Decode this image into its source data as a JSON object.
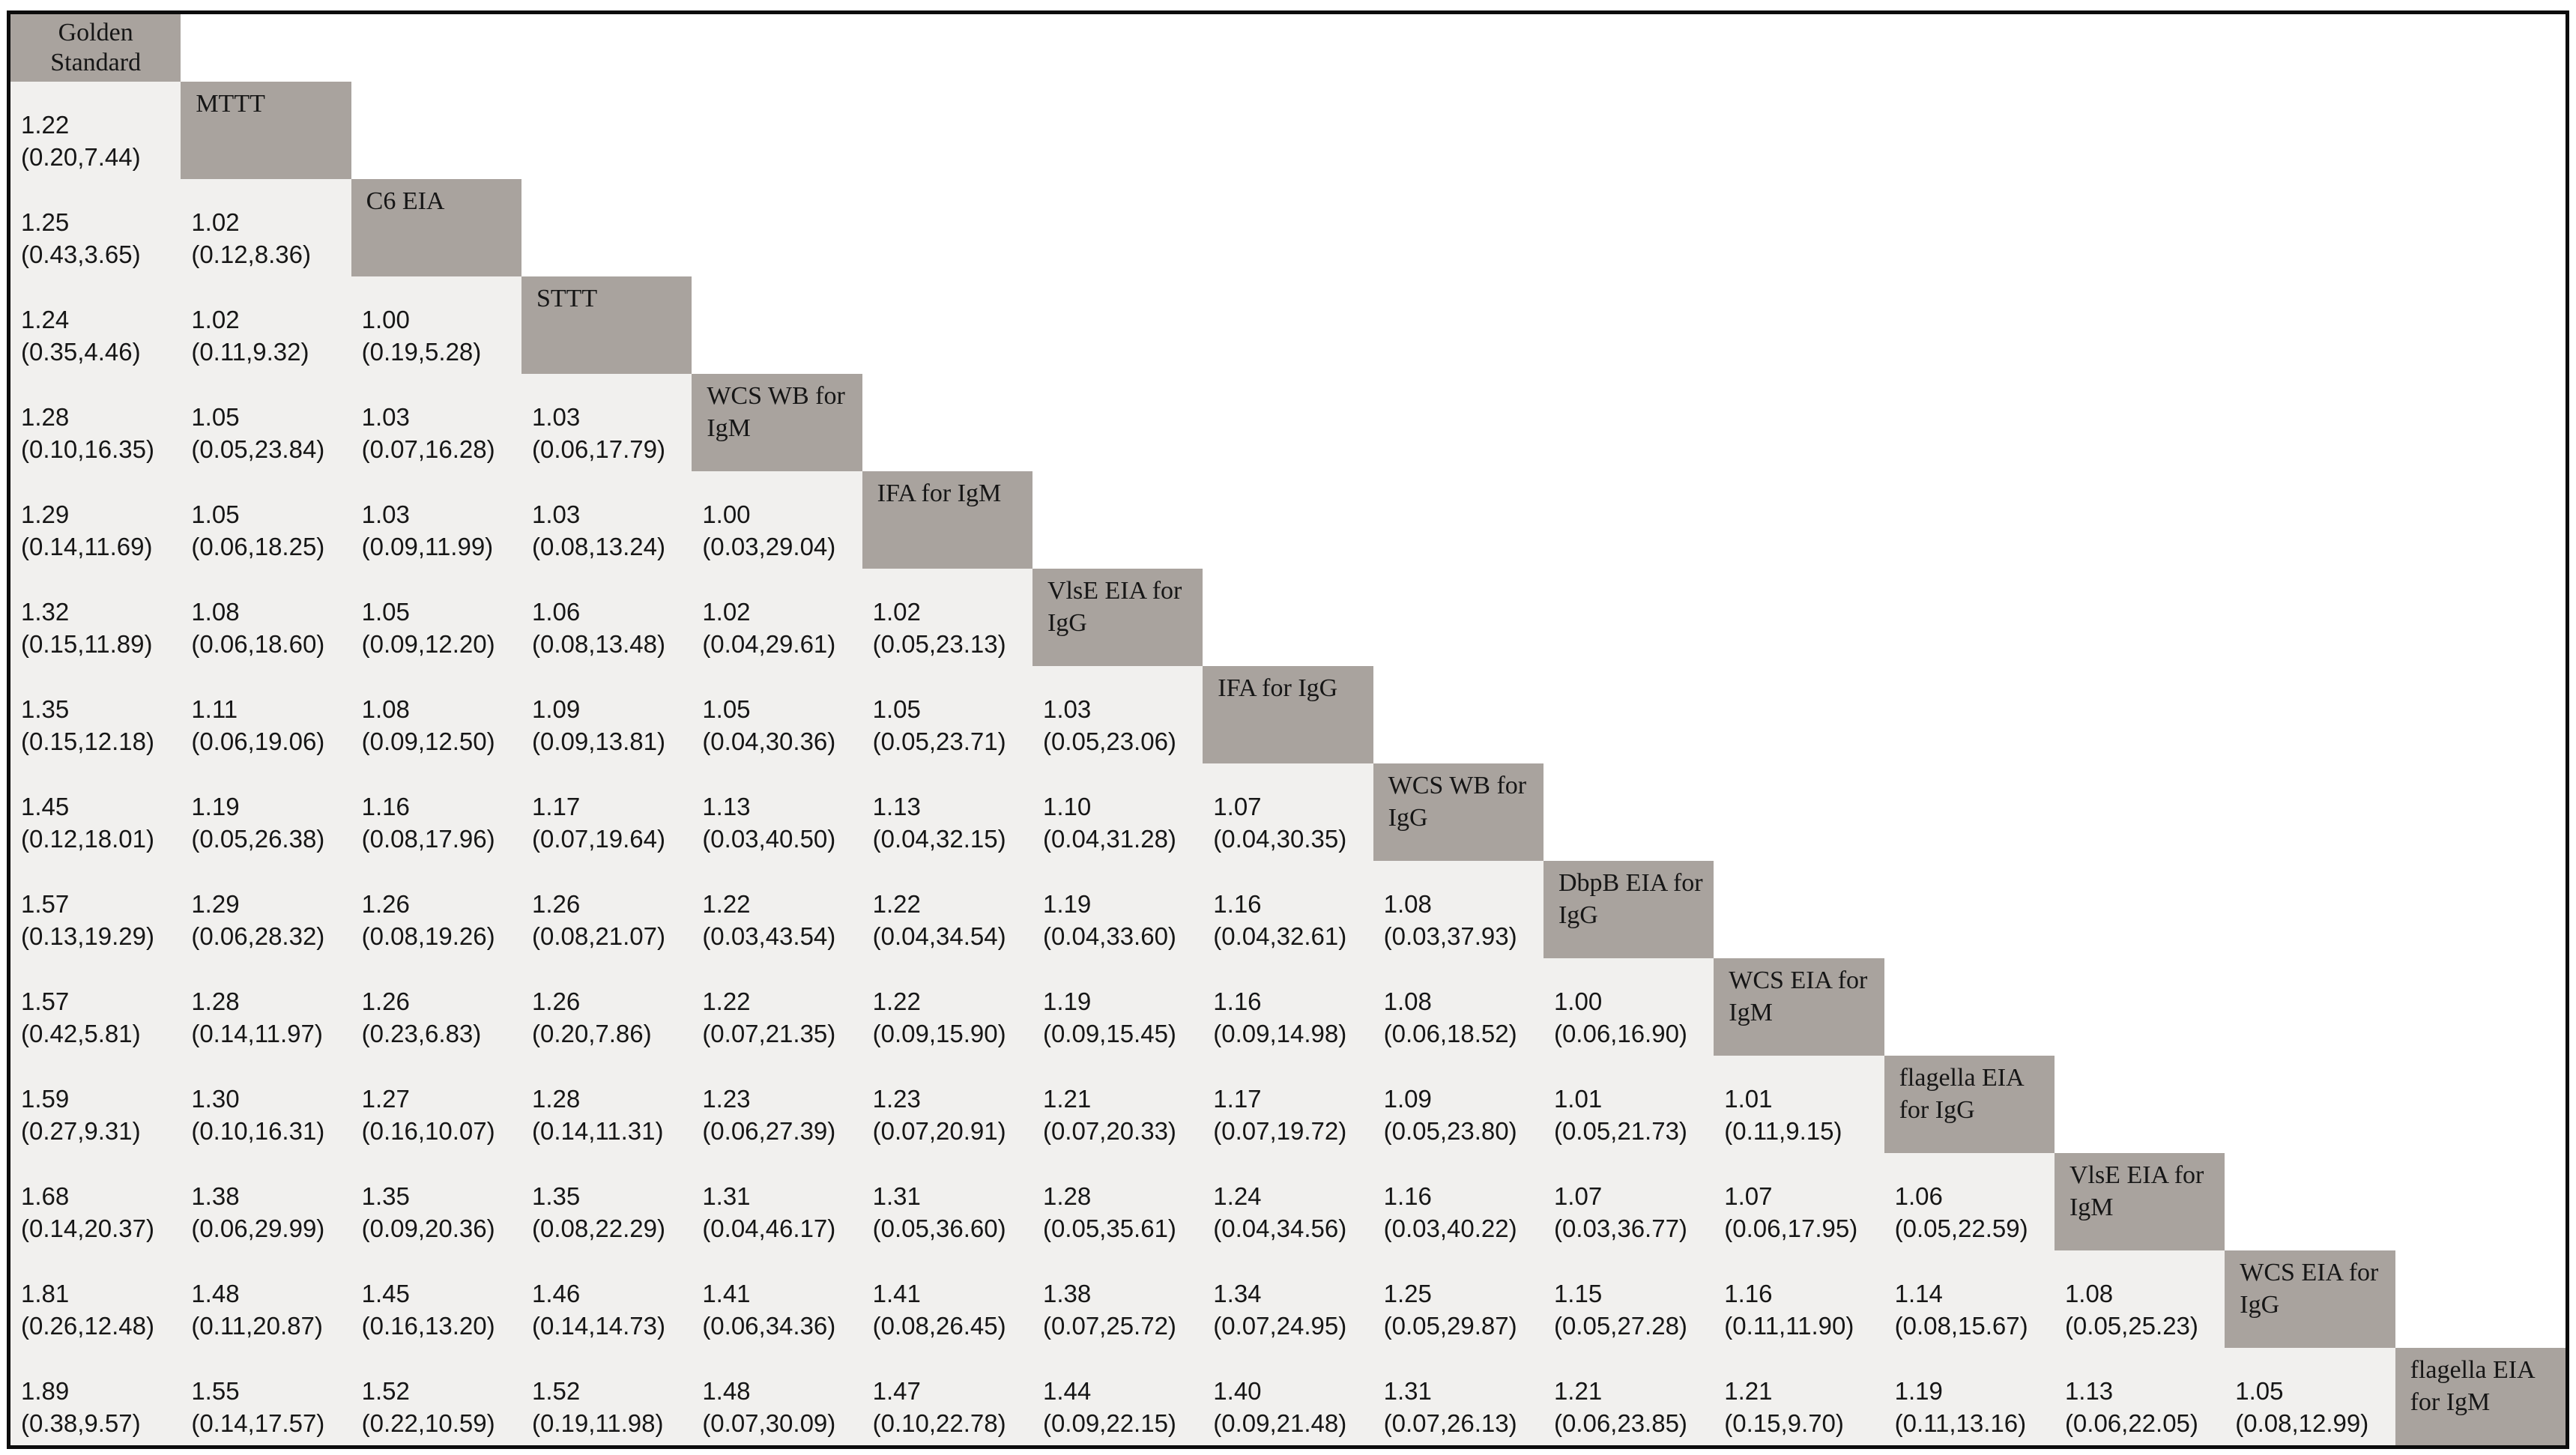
{
  "figure": {
    "kind": "network-meta-analysis league table of diagnostic tests",
    "border_color": "#0c0c0c",
    "background": "#ffffff"
  },
  "colors": {
    "diagonal_cell_bg": "#a9a39e",
    "value_cell_bg": "#f1f0ee",
    "empty_cell_bg": "#ffffff",
    "text": "#161616"
  },
  "chart_data": {
    "type": "table",
    "layout": "lower-triangular matrix; diagonal cells hold test names; each lower cell shows relative estimate with (lower,upper) interval comparing row test vs column test",
    "diagonal_labels": [
      "Golden Standard",
      "MTTT",
      "C6 EIA",
      "STTT",
      "WCS WB for IgM",
      "IFA for IgM",
      "VlsE EIA for IgG",
      "IFA for IgG",
      "WCS WB for IgG",
      "DbpB EIA for IgG",
      "WCS EIA for IgM",
      "flagella EIA for IgG",
      "VlsE EIA for IgM",
      "WCS EIA for IgG",
      "flagella EIA for IgM"
    ],
    "rows": [
      {
        "diagonal": "Golden Standard",
        "cells": []
      },
      {
        "diagonal": "MTTT",
        "cells": [
          {
            "est": "1.22",
            "ci": "(0.20,7.44)"
          }
        ]
      },
      {
        "diagonal": "C6 EIA",
        "cells": [
          {
            "est": "1.25",
            "ci": "(0.43,3.65)"
          },
          {
            "est": "1.02",
            "ci": "(0.12,8.36)"
          }
        ]
      },
      {
        "diagonal": "STTT",
        "cells": [
          {
            "est": "1.24",
            "ci": "(0.35,4.46)"
          },
          {
            "est": "1.02",
            "ci": "(0.11,9.32)"
          },
          {
            "est": "1.00",
            "ci": "(0.19,5.28)"
          }
        ]
      },
      {
        "diagonal": "WCS WB for IgM",
        "cells": [
          {
            "est": "1.28",
            "ci": "(0.10,16.35)"
          },
          {
            "est": "1.05",
            "ci": "(0.05,23.84)"
          },
          {
            "est": "1.03",
            "ci": "(0.07,16.28)"
          },
          {
            "est": "1.03",
            "ci": "(0.06,17.79)"
          }
        ]
      },
      {
        "diagonal": "IFA for IgM",
        "cells": [
          {
            "est": "1.29",
            "ci": "(0.14,11.69)"
          },
          {
            "est": "1.05",
            "ci": "(0.06,18.25)"
          },
          {
            "est": "1.03",
            "ci": "(0.09,11.99)"
          },
          {
            "est": "1.03",
            "ci": "(0.08,13.24)"
          },
          {
            "est": "1.00",
            "ci": "(0.03,29.04)"
          }
        ]
      },
      {
        "diagonal": "VlsE EIA for IgG",
        "cells": [
          {
            "est": "1.32",
            "ci": "(0.15,11.89)"
          },
          {
            "est": "1.08",
            "ci": "(0.06,18.60)"
          },
          {
            "est": "1.05",
            "ci": "(0.09,12.20)"
          },
          {
            "est": "1.06",
            "ci": "(0.08,13.48)"
          },
          {
            "est": "1.02",
            "ci": "(0.04,29.61)"
          },
          {
            "est": "1.02",
            "ci": "(0.05,23.13)"
          }
        ]
      },
      {
        "diagonal": "IFA for IgG",
        "cells": [
          {
            "est": "1.35",
            "ci": "(0.15,12.18)"
          },
          {
            "est": "1.11",
            "ci": "(0.06,19.06)"
          },
          {
            "est": "1.08",
            "ci": "(0.09,12.50)"
          },
          {
            "est": "1.09",
            "ci": "(0.09,13.81)"
          },
          {
            "est": "1.05",
            "ci": "(0.04,30.36)"
          },
          {
            "est": "1.05",
            "ci": "(0.05,23.71)"
          },
          {
            "est": "1.03",
            "ci": "(0.05,23.06)"
          }
        ]
      },
      {
        "diagonal": "WCS WB for IgG",
        "cells": [
          {
            "est": "1.45",
            "ci": "(0.12,18.01)"
          },
          {
            "est": "1.19",
            "ci": "(0.05,26.38)"
          },
          {
            "est": "1.16",
            "ci": "(0.08,17.96)"
          },
          {
            "est": "1.17",
            "ci": "(0.07,19.64)"
          },
          {
            "est": "1.13",
            "ci": "(0.03,40.50)"
          },
          {
            "est": "1.13",
            "ci": "(0.04,32.15)"
          },
          {
            "est": "1.10",
            "ci": "(0.04,31.28)"
          },
          {
            "est": "1.07",
            "ci": "(0.04,30.35)"
          }
        ]
      },
      {
        "diagonal": "DbpB EIA for IgG",
        "cells": [
          {
            "est": "1.57",
            "ci": "(0.13,19.29)"
          },
          {
            "est": "1.29",
            "ci": "(0.06,28.32)"
          },
          {
            "est": "1.26",
            "ci": "(0.08,19.26)"
          },
          {
            "est": "1.26",
            "ci": "(0.08,21.07)"
          },
          {
            "est": "1.22",
            "ci": "(0.03,43.54)"
          },
          {
            "est": "1.22",
            "ci": "(0.04,34.54)"
          },
          {
            "est": "1.19",
            "ci": "(0.04,33.60)"
          },
          {
            "est": "1.16",
            "ci": "(0.04,32.61)"
          },
          {
            "est": "1.08",
            "ci": "(0.03,37.93)"
          }
        ]
      },
      {
        "diagonal": "WCS EIA for IgM",
        "cells": [
          {
            "est": "1.57",
            "ci": "(0.42,5.81)"
          },
          {
            "est": "1.28",
            "ci": "(0.14,11.97)"
          },
          {
            "est": "1.26",
            "ci": "(0.23,6.83)"
          },
          {
            "est": "1.26",
            "ci": "(0.20,7.86)"
          },
          {
            "est": "1.22",
            "ci": "(0.07,21.35)"
          },
          {
            "est": "1.22",
            "ci": "(0.09,15.90)"
          },
          {
            "est": "1.19",
            "ci": "(0.09,15.45)"
          },
          {
            "est": "1.16",
            "ci": "(0.09,14.98)"
          },
          {
            "est": "1.08",
            "ci": "(0.06,18.52)"
          },
          {
            "est": "1.00",
            "ci": "(0.06,16.90)"
          }
        ]
      },
      {
        "diagonal": "flagella EIA for IgG",
        "cells": [
          {
            "est": "1.59",
            "ci": "(0.27,9.31)"
          },
          {
            "est": "1.30",
            "ci": "(0.10,16.31)"
          },
          {
            "est": "1.27",
            "ci": "(0.16,10.07)"
          },
          {
            "est": "1.28",
            "ci": "(0.14,11.31)"
          },
          {
            "est": "1.23",
            "ci": "(0.06,27.39)"
          },
          {
            "est": "1.23",
            "ci": "(0.07,20.91)"
          },
          {
            "est": "1.21",
            "ci": "(0.07,20.33)"
          },
          {
            "est": "1.17",
            "ci": "(0.07,19.72)"
          },
          {
            "est": "1.09",
            "ci": "(0.05,23.80)"
          },
          {
            "est": "1.01",
            "ci": "(0.05,21.73)"
          },
          {
            "est": "1.01",
            "ci": "(0.11,9.15)"
          }
        ]
      },
      {
        "diagonal": "VlsE EIA for IgM",
        "cells": [
          {
            "est": "1.68",
            "ci": "(0.14,20.37)"
          },
          {
            "est": "1.38",
            "ci": "(0.06,29.99)"
          },
          {
            "est": "1.35",
            "ci": "(0.09,20.36)"
          },
          {
            "est": "1.35",
            "ci": "(0.08,22.29)"
          },
          {
            "est": "1.31",
            "ci": "(0.04,46.17)"
          },
          {
            "est": "1.31",
            "ci": "(0.05,36.60)"
          },
          {
            "est": "1.28",
            "ci": "(0.05,35.61)"
          },
          {
            "est": "1.24",
            "ci": "(0.04,34.56)"
          },
          {
            "est": "1.16",
            "ci": "(0.03,40.22)"
          },
          {
            "est": "1.07",
            "ci": "(0.03,36.77)"
          },
          {
            "est": "1.07",
            "ci": "(0.06,17.95)"
          },
          {
            "est": "1.06",
            "ci": "(0.05,22.59)"
          }
        ]
      },
      {
        "diagonal": "WCS EIA for IgG",
        "cells": [
          {
            "est": "1.81",
            "ci": "(0.26,12.48)"
          },
          {
            "est": "1.48",
            "ci": "(0.11,20.87)"
          },
          {
            "est": "1.45",
            "ci": "(0.16,13.20)"
          },
          {
            "est": "1.46",
            "ci": "(0.14,14.73)"
          },
          {
            "est": "1.41",
            "ci": "(0.06,34.36)"
          },
          {
            "est": "1.41",
            "ci": "(0.08,26.45)"
          },
          {
            "est": "1.38",
            "ci": "(0.07,25.72)"
          },
          {
            "est": "1.34",
            "ci": "(0.07,24.95)"
          },
          {
            "est": "1.25",
            "ci": "(0.05,29.87)"
          },
          {
            "est": "1.15",
            "ci": "(0.05,27.28)"
          },
          {
            "est": "1.16",
            "ci": "(0.11,11.90)"
          },
          {
            "est": "1.14",
            "ci": "(0.08,15.67)"
          },
          {
            "est": "1.08",
            "ci": "(0.05,25.23)"
          }
        ]
      },
      {
        "diagonal": "flagella EIA for IgM",
        "cells": [
          {
            "est": "1.89",
            "ci": "(0.38,9.57)"
          },
          {
            "est": "1.55",
            "ci": "(0.14,17.57)"
          },
          {
            "est": "1.52",
            "ci": "(0.22,10.59)"
          },
          {
            "est": "1.52",
            "ci": "(0.19,11.98)"
          },
          {
            "est": "1.48",
            "ci": "(0.07,30.09)"
          },
          {
            "est": "1.47",
            "ci": "(0.10,22.78)"
          },
          {
            "est": "1.44",
            "ci": "(0.09,22.15)"
          },
          {
            "est": "1.40",
            "ci": "(0.09,21.48)"
          },
          {
            "est": "1.31",
            "ci": "(0.07,26.13)"
          },
          {
            "est": "1.21",
            "ci": "(0.06,23.85)"
          },
          {
            "est": "1.21",
            "ci": "(0.15,9.70)"
          },
          {
            "est": "1.19",
            "ci": "(0.11,13.16)"
          },
          {
            "est": "1.13",
            "ci": "(0.06,22.05)"
          },
          {
            "est": "1.05",
            "ci": "(0.08,12.99)"
          }
        ]
      }
    ]
  }
}
